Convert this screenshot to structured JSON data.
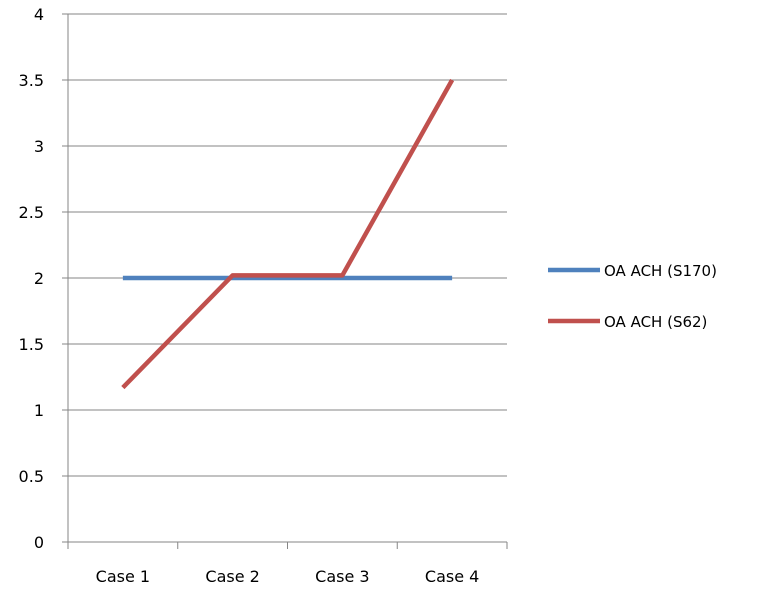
{
  "chart_data": {
    "type": "line",
    "categories": [
      "Case 1",
      "Case 2",
      "Case 3",
      "Case 4"
    ],
    "series": [
      {
        "name": "OA ACH (S170)",
        "color": "#4F81BD",
        "values": [
          2,
          2,
          2,
          2
        ]
      },
      {
        "name": "OA ACH (S62)",
        "color": "#C0504D",
        "values": [
          1.17,
          2.02,
          2.02,
          3.5
        ]
      }
    ],
    "yticks": [
      "0",
      "0.5",
      "1",
      "1.5",
      "2",
      "2.5",
      "3",
      "3.5",
      "4"
    ],
    "ylim": [
      0,
      4
    ],
    "grid": true,
    "gridline_color": "#868686",
    "legend_position": "right"
  }
}
